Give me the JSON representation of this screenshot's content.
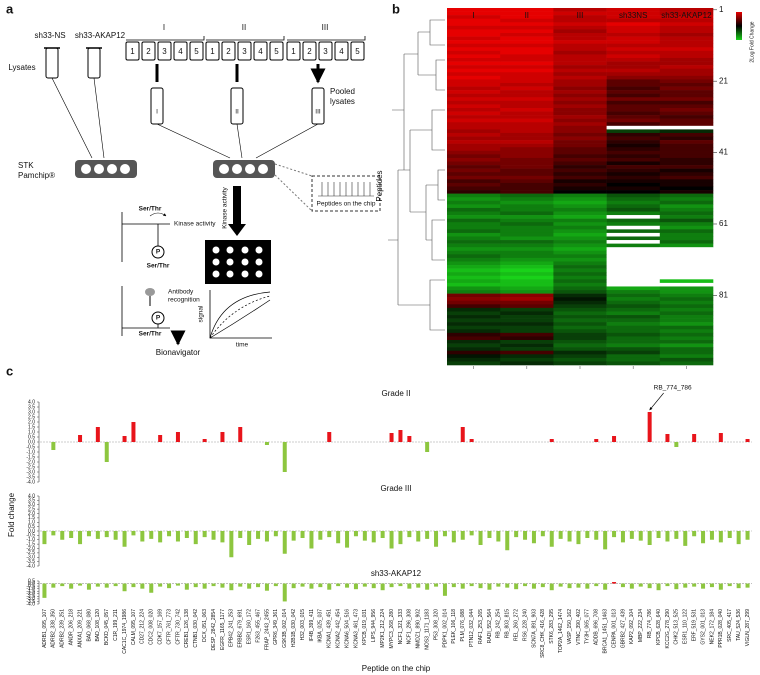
{
  "panel_labels": [
    "a",
    "b",
    "c"
  ],
  "diagram": {
    "lysate_groups": [
      "sh33-NS",
      "sh33-AKAP12"
    ],
    "lysates": "Lysates",
    "grades": [
      "I",
      "II",
      "III"
    ],
    "tube_numbers": [
      "1",
      "2",
      "3",
      "4",
      "5"
    ],
    "pooled_lysates": [
      "Pooled",
      "lysates"
    ],
    "chip": [
      "STK",
      "Pamchip®"
    ],
    "kinase_activity": "Kinase activity",
    "peptides_on_chip": "Peptides on the chip",
    "ser_thr": "Ser/Thr",
    "phospho": "P",
    "antibody": [
      "Antibody",
      "recognition"
    ],
    "signal": "signal",
    "time": "time",
    "bionavigator": "Bionavigator"
  },
  "chart_data": [
    {
      "type": "heatmap",
      "categories": [
        "I",
        "II",
        "III",
        "sh33NS",
        "sh33-AKAP12"
      ],
      "y_label": "Peptides",
      "colorbar_label": "2Log  Fold Change",
      "clim": [
        -1,
        1
      ],
      "ylim": [
        1,
        100
      ],
      "yticks": [
        1,
        21,
        41,
        61,
        81
      ],
      "colors": {
        "high": "#e60000",
        "mid": "#000000",
        "low": "#19d219",
        "missing": "#ffffff"
      },
      "values": [
        [
          1,
          1,
          0.8,
          0.9,
          0.8
        ],
        [
          1,
          1,
          0.9,
          0.9,
          0.8
        ],
        [
          0.9,
          1,
          0.8,
          0.9,
          0.9
        ],
        [
          1,
          0.9,
          0.8,
          0.8,
          0.8
        ],
        [
          1,
          1,
          0.9,
          1,
          0.9
        ],
        [
          0.9,
          0.9,
          0.8,
          0.9,
          0.8
        ],
        [
          1,
          1,
          0.7,
          0.9,
          0.8
        ],
        [
          1,
          0.9,
          0.8,
          0.8,
          0.7
        ],
        [
          0.9,
          1,
          0.8,
          0.9,
          0.8
        ],
        [
          1,
          1,
          0.9,
          0.9,
          0.8
        ],
        [
          0.9,
          0.9,
          0.8,
          0.8,
          0.8
        ],
        [
          1,
          1,
          0.8,
          0.9,
          0.9
        ],
        [
          0.9,
          1,
          0.7,
          0.8,
          0.8
        ],
        [
          1,
          0.9,
          0.8,
          0.9,
          0.8
        ],
        [
          0.9,
          0.9,
          0.8,
          0.8,
          0.7
        ],
        [
          1,
          1,
          0.8,
          0.7,
          0.7
        ],
        [
          0.9,
          0.9,
          0.7,
          0.7,
          0.8
        ],
        [
          1,
          1,
          0.8,
          0.8,
          0.7
        ],
        [
          0.9,
          0.9,
          0.7,
          0.7,
          0.7
        ],
        [
          1,
          0.9,
          0.8,
          0.6,
          0.6
        ],
        [
          0.9,
          0.9,
          0.7,
          0.4,
          0.5
        ],
        [
          0.9,
          0.8,
          0.7,
          0.4,
          0.4
        ],
        [
          0.8,
          0.9,
          0.6,
          0.3,
          0.5
        ],
        [
          0.9,
          0.8,
          0.7,
          0.4,
          0.4
        ],
        [
          0.8,
          0.8,
          0.6,
          0.3,
          0.4
        ],
        [
          0.9,
          0.9,
          0.7,
          0.5,
          0.5
        ],
        [
          0.8,
          0.8,
          0.6,
          0.3,
          0.3
        ],
        [
          0.9,
          0.8,
          0.7,
          0.4,
          0.4
        ],
        [
          0.8,
          0.9,
          0.6,
          0.4,
          0.5
        ],
        [
          0.9,
          0.8,
          0.6,
          0.3,
          0.4
        ],
        [
          0.8,
          0.8,
          0.7,
          0.4,
          0.3
        ],
        [
          0.9,
          0.9,
          0.6,
          0.5,
          0.4
        ],
        [
          0.8,
          0.8,
          0.7,
          0.3,
          0.4
        ],
        [
          0.8,
          0.8,
          0.6,
          null,
          null
        ],
        [
          0.7,
          0.8,
          0.6,
          -0.3,
          -0.2
        ],
        [
          0.8,
          0.7,
          0.5,
          0.2,
          0.3
        ],
        [
          0.7,
          0.7,
          0.6,
          0.3,
          0.2
        ],
        [
          0.8,
          0.8,
          0.5,
          0.2,
          0.4
        ],
        [
          0.7,
          0.7,
          0.5,
          0.1,
          0.3
        ],
        [
          0.7,
          0.6,
          0.4,
          0.2,
          0.3
        ],
        [
          0.6,
          0.6,
          0.4,
          0.3,
          0.3
        ],
        [
          0.5,
          0.6,
          0.3,
          0.2,
          0.3
        ],
        [
          0.6,
          0.5,
          0.4,
          0.3,
          0.2
        ],
        [
          0.5,
          0.5,
          0.3,
          0.1,
          0.2
        ],
        [
          0.4,
          0.5,
          0.2,
          0.3,
          0.3
        ],
        [
          0.5,
          0.4,
          0.3,
          0.2,
          0.1
        ],
        [
          0.4,
          0.4,
          0.2,
          0.1,
          0.2
        ],
        [
          0.5,
          0.5,
          0.3,
          0.2,
          0.3
        ],
        [
          0.3,
          0.4,
          0.1,
          0.1,
          0.1
        ],
        [
          0.4,
          0.3,
          0.2,
          0,
          0.1
        ],
        [
          0.3,
          0.3,
          0.1,
          0.1,
          0
        ],
        [
          0.2,
          0.3,
          0,
          0,
          0.1
        ],
        [
          -0.6,
          -0.5,
          -0.6,
          -0.4,
          -0.5
        ],
        [
          -0.7,
          -0.6,
          -0.7,
          -0.5,
          -0.6
        ],
        [
          -0.6,
          -0.7,
          -0.8,
          -0.6,
          -0.5
        ],
        [
          -0.7,
          -0.6,
          -0.7,
          -0.5,
          -0.7
        ],
        [
          -0.5,
          -0.6,
          -0.6,
          -0.4,
          -0.6
        ],
        [
          -0.6,
          -0.5,
          -0.7,
          -0.6,
          -0.5
        ],
        [
          -0.7,
          -0.7,
          -0.8,
          null,
          -0.6
        ],
        [
          -0.5,
          -0.6,
          -0.6,
          -0.5,
          -0.4
        ],
        [
          -0.6,
          -0.5,
          -0.7,
          -0.6,
          -0.6
        ],
        [
          -0.6,
          -0.6,
          -0.6,
          null,
          -0.7
        ],
        [
          -0.5,
          -0.6,
          -0.7,
          -0.5,
          -0.5
        ],
        [
          -0.7,
          -0.6,
          -0.8,
          null,
          -0.6
        ],
        [
          -0.6,
          -0.7,
          -0.7,
          -0.5,
          -0.6
        ],
        [
          -0.5,
          -0.5,
          -0.6,
          null,
          -0.5
        ],
        [
          -0.6,
          -0.6,
          -0.7,
          -0.6,
          -0.7
        ],
        [
          -0.7,
          -0.7,
          -0.8,
          null,
          null
        ],
        [
          -0.6,
          -0.6,
          -0.7,
          null,
          null
        ],
        [
          -0.5,
          -0.6,
          -0.6,
          null,
          null
        ],
        [
          -0.6,
          -0.7,
          -0.7,
          null,
          null
        ],
        [
          -0.7,
          -0.8,
          -0.6,
          null,
          null
        ],
        [
          -0.8,
          -0.9,
          -0.5,
          null,
          null
        ],
        [
          -0.9,
          -1,
          -0.6,
          null,
          null
        ],
        [
          -0.8,
          -0.9,
          -0.5,
          null,
          null
        ],
        [
          -0.9,
          -1,
          -0.6,
          null,
          null
        ],
        [
          -0.8,
          -0.9,
          -0.5,
          null,
          -0.9
        ],
        [
          -0.9,
          -0.9,
          -0.6,
          null,
          null
        ],
        [
          -0.7,
          -0.8,
          -0.5,
          -0.8,
          -0.7
        ],
        [
          -0.6,
          -0.7,
          -0.4,
          -0.6,
          -0.7
        ],
        [
          0.5,
          0.6,
          -0.2,
          -0.5,
          -0.6
        ],
        [
          0.6,
          0.7,
          -0.1,
          -0.6,
          -0.5
        ],
        [
          0.5,
          0.5,
          -0.2,
          -0.5,
          -0.6
        ],
        [
          0.3,
          0.4,
          -0.3,
          -0.4,
          -0.5
        ],
        [
          -0.2,
          -0.3,
          -0.4,
          -0.5,
          -0.6
        ],
        [
          -0.3,
          -0.2,
          -0.5,
          -0.6,
          -0.5
        ],
        [
          -0.2,
          -0.3,
          -0.4,
          -0.4,
          -0.6
        ],
        [
          -0.3,
          -0.3,
          -0.5,
          -0.5,
          -0.6
        ],
        [
          -0.2,
          -0.2,
          -0.4,
          -0.6,
          -0.7
        ],
        [
          -0.3,
          -0.3,
          -0.5,
          -0.5,
          -0.5
        ],
        [
          -0.2,
          -0.3,
          -0.4,
          -0.5,
          -0.6
        ],
        [
          0.2,
          0.3,
          -0.3,
          -0.4,
          -0.5
        ],
        [
          0.3,
          0.2,
          -0.3,
          -0.5,
          -0.6
        ],
        [
          -0.2,
          -0.3,
          -0.4,
          -0.5,
          -0.5
        ],
        [
          -0.3,
          -0.2,
          -0.5,
          -0.6,
          -0.7
        ],
        [
          -0.2,
          -0.3,
          -0.4,
          -0.4,
          -0.5
        ],
        [
          0.2,
          0.3,
          -0.2,
          -0.3,
          -0.5
        ],
        [
          -0.1,
          -0.2,
          -0.3,
          -0.5,
          -0.6
        ],
        [
          -0.2,
          -0.3,
          -0.4,
          -0.5,
          -0.4
        ],
        [
          -0.3,
          -0.2,
          -0.3,
          -0.4,
          -0.5
        ]
      ]
    },
    {
      "type": "bar",
      "title": "Grade II",
      "y_label": "Fold change",
      "annotation": "RB_774_786",
      "colors": {
        "positive": "#e8141b",
        "negative": "#8dc63f"
      },
      "ylim": [
        -4,
        4
      ],
      "yticks": [
        {
          "value": 4,
          "label": "4.0"
        },
        3.5,
        {
          "value": 3,
          "label": "3.0"
        },
        2.5,
        {
          "value": 2,
          "label": "2.0"
        },
        1.5,
        {
          "value": 1,
          "label": "1.0"
        },
        0.5,
        {
          "value": 0,
          "label": "0.0"
        },
        -0.5,
        {
          "value": -1,
          "label": "-1.0"
        },
        -1.5,
        {
          "value": -2,
          "label": "-2.0"
        },
        -2.5,
        {
          "value": -3,
          "label": "-3.0"
        },
        -3.5,
        {
          "value": -4,
          "label": "-4.0"
        }
      ],
      "values": [
        0,
        -0.8,
        0,
        0,
        0.7,
        0,
        1.5,
        -2.0,
        0,
        0.6,
        2.0,
        0,
        0,
        0.7,
        0,
        1.0,
        0,
        0,
        0.3,
        0,
        1.0,
        0,
        1.5,
        0,
        0,
        -0.3,
        0,
        -3.0,
        0,
        0,
        0,
        0,
        1.0,
        0,
        0,
        0,
        0,
        0,
        0,
        0.9,
        1.2,
        0.6,
        0,
        -1.0,
        0,
        0,
        0,
        1.5,
        0.3,
        0,
        0,
        0,
        0,
        0,
        0,
        0,
        0,
        0.3,
        0,
        0,
        0,
        0,
        0.3,
        0,
        0.6,
        0,
        0,
        0,
        3.0,
        0,
        0.8,
        -0.5,
        0,
        0.8,
        0,
        0,
        0.9,
        0,
        0,
        0.3
      ]
    },
    {
      "type": "bar",
      "title": "Grade III",
      "colors": {
        "positive": "#e8141b",
        "negative": "#8dc63f"
      },
      "ylim": [
        -4,
        4
      ],
      "yticks": [
        {
          "value": 4,
          "label": "4.0"
        },
        3.5,
        {
          "value": 3,
          "label": "3.0"
        },
        2.5,
        {
          "value": 2,
          "label": "2.0"
        },
        1.5,
        {
          "value": 1,
          "label": "1.0"
        },
        0.5,
        {
          "value": 0,
          "label": "0.0"
        },
        -0.5,
        {
          "value": -1,
          "label": "-1.0"
        },
        -1.5,
        {
          "value": -2,
          "label": "-2.0"
        },
        -2.5,
        {
          "value": -3,
          "label": "-3.0"
        },
        -3.5,
        {
          "value": -4,
          "label": "-4.0"
        }
      ],
      "values": [
        -1.5,
        -0.5,
        -1.0,
        -0.8,
        -1.5,
        -0.6,
        -0.9,
        -0.7,
        -1.0,
        -1.8,
        -0.5,
        -1.2,
        -0.9,
        -1.3,
        -0.6,
        -1.2,
        -0.8,
        -1.5,
        -0.7,
        -1.0,
        -1.3,
        -3.0,
        -0.8,
        -1.6,
        -0.9,
        -1.2,
        -0.6,
        -2.6,
        -1.1,
        -0.8,
        -2.0,
        -1.0,
        -0.7,
        -1.4,
        -1.9,
        -0.6,
        -1.1,
        -1.3,
        -0.8,
        -2.0,
        -1.5,
        -0.7,
        -1.2,
        -0.9,
        -1.8,
        -0.6,
        -1.3,
        -1.0,
        -0.5,
        -1.6,
        -0.8,
        -1.2,
        -2.2,
        -0.7,
        -1.0,
        -1.4,
        -0.6,
        -1.8,
        -0.9,
        -1.2,
        -1.5,
        -0.8,
        -1.0,
        -2.1,
        -0.7,
        -1.3,
        -0.9,
        -1.1,
        -1.6,
        -0.8,
        -1.2,
        -0.9,
        -1.7,
        -0.6,
        -1.4,
        -1.0,
        -1.3,
        -0.8,
        -1.5,
        -1.0
      ]
    },
    {
      "type": "bar",
      "title": "sh33-AKAP12",
      "x_label": "Peptide on the chip",
      "colors": {
        "positive": "#e8141b",
        "negative": "#8dc63f"
      },
      "ylim": [
        -4,
        0.5
      ],
      "yticks": [
        0.5,
        {
          "value": 0,
          "label": "0.0"
        },
        -0.5,
        {
          "value": -1,
          "label": "-1.0"
        },
        -1.5,
        {
          "value": -2,
          "label": "-2.0"
        },
        -2.5,
        {
          "value": -3,
          "label": "-3.0"
        },
        -3.5,
        {
          "value": -4,
          "label": "-4.0"
        }
      ],
      "values": [
        -2.8,
        -0.8,
        -0.5,
        -1.0,
        -0.4,
        -1.2,
        -0.6,
        -0.8,
        -0.5,
        -1.5,
        -0.7,
        -1.0,
        -1.8,
        -0.6,
        -0.9,
        -0.4,
        -1.2,
        -0.7,
        -1.0,
        -0.5,
        -0.8,
        -1.3,
        -0.6,
        -1.0,
        -0.7,
        -1.4,
        -0.5,
        -3.5,
        -0.9,
        -0.6,
        -1.0,
        -0.7,
        -1.2,
        -0.5,
        -0.8,
        -1.1,
        -0.6,
        -0.9,
        -1.3,
        -0.7,
        -0.5,
        -1.0,
        -0.8,
        -1.2,
        -0.6,
        -2.4,
        -0.7,
        -1.0,
        -0.5,
        -0.9,
        -1.2,
        -0.6,
        -0.8,
        -1.1,
        -0.5,
        -1.0,
        -0.7,
        -1.3,
        -0.6,
        -0.9,
        -0.8,
        -1.0,
        -0.5,
        -1.2,
        0.3,
        -0.7,
        -1.0,
        -0.6,
        -0.9,
        -1.3,
        -0.5,
        -1.1,
        -0.8,
        -0.6,
        -1.0,
        -0.7,
        -1.2,
        -0.5,
        -0.9,
        -0.8
      ],
      "categories": [
        "ADRB1_095_107",
        "ADRB2_338_350",
        "ADRB2_239_251",
        "ANDR_206_218",
        "ANXA1_209_221",
        "BAD_068_080",
        "BAD_108_120",
        "BCKD_045_057",
        "C1R_199_211",
        "CAC1C_1974_1986",
        "CALM_095_107",
        "CD27_212_224",
        "CDC2_008_020",
        "CDK7_157_169",
        "CFTR_761_773",
        "CFTR_730_742",
        "CREB1_126_138",
        "CTNB1_030_042",
        "DCX_051_063",
        "DESP_2842_2854",
        "EGFR_1165_1177",
        "EPB42_241_253",
        "ERBB2_679_691",
        "ESR1_160_172",
        "F263_455_467",
        "FRAP_2443_2455",
        "GPR6_349_361",
        "GSK3B_002_014",
        "H2B1B_030_042",
        "H32_003_015",
        "IF4B_399_411",
        "IKBA_025_037",
        "KCNA1_439_451",
        "KCNA2_442_454",
        "KCNA6_504_516",
        "KCNA3_461_473",
        "KPCB_019_031",
        "LIPS_944_956",
        "MP2K1_212_224",
        "MYPC3_268_280",
        "NCF1_321_333",
        "NCF1_296_308",
        "NMDZ1_890_902",
        "NOS3_1171_1183",
        "P53_308_320",
        "PDPK1_002_014",
        "PLEK_106_118",
        "PLM_076_088",
        "PTN12_032_044",
        "RAF1_253_265",
        "RADI_552_564",
        "RB_242_254",
        "RB_803_815",
        "REL_260_272",
        "RS6_228_240",
        "SCN7A_891_903",
        "SRC8_CHK_416_428",
        "STK6_283_295",
        "TOP2A_1462_1474",
        "VASP_150_162",
        "VTNC_390_402",
        "TY3H_065_077",
        "ADDB_696_708",
        "BRCA1_1451_1463",
        "CENPA_001_013",
        "GBRB2_427_439",
        "KAP2_092_104",
        "MBP_222_234",
        "RB_774_786",
        "KPCB_628_640",
        "KCC2G_278_290",
        "CHK2_513_525",
        "ESR1_110_122",
        "ERF_519_531",
        "GYS2_001_013",
        "NEK2_172_184",
        "PPR1B_028_040",
        "SRC_405_417",
        "TAU_524_536",
        "VIGLN_287_299"
      ]
    }
  ]
}
